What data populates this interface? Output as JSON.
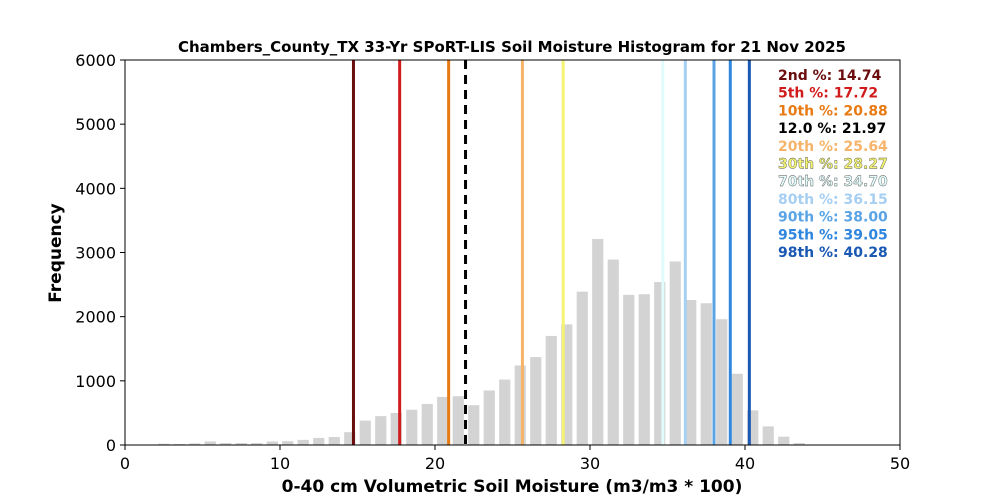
{
  "chart_data": {
    "type": "bar",
    "title": "Chambers_County_TX 33-Yr SPoRT-LIS Soil Moisture Histogram for 21 Nov 2025",
    "xlabel": "0-40 cm Volumetric Soil Moisture (m3/m3 * 100)",
    "ylabel": "Frequency",
    "xlim": [
      0,
      50
    ],
    "ylim": [
      0,
      6000
    ],
    "xticks": [
      0,
      10,
      20,
      30,
      40,
      50
    ],
    "yticks": [
      0,
      1000,
      2000,
      3000,
      4000,
      5000,
      6000
    ],
    "bin_width": 1,
    "bar_color": "#d3d3d3",
    "bins": [
      {
        "x": 2.5,
        "count": 20
      },
      {
        "x": 3.5,
        "count": 15
      },
      {
        "x": 4.5,
        "count": 25
      },
      {
        "x": 5.5,
        "count": 55
      },
      {
        "x": 6.5,
        "count": 30
      },
      {
        "x": 7.5,
        "count": 30
      },
      {
        "x": 8.5,
        "count": 30
      },
      {
        "x": 9.5,
        "count": 55
      },
      {
        "x": 10.5,
        "count": 60
      },
      {
        "x": 11.5,
        "count": 80
      },
      {
        "x": 12.5,
        "count": 110
      },
      {
        "x": 13.5,
        "count": 125
      },
      {
        "x": 14.5,
        "count": 200
      },
      {
        "x": 15.5,
        "count": 380
      },
      {
        "x": 16.5,
        "count": 450
      },
      {
        "x": 17.5,
        "count": 500
      },
      {
        "x": 18.5,
        "count": 550
      },
      {
        "x": 19.5,
        "count": 640
      },
      {
        "x": 20.5,
        "count": 750
      },
      {
        "x": 21.5,
        "count": 760
      },
      {
        "x": 22.5,
        "count": 620
      },
      {
        "x": 23.5,
        "count": 850
      },
      {
        "x": 24.5,
        "count": 1020
      },
      {
        "x": 25.5,
        "count": 1240
      },
      {
        "x": 26.5,
        "count": 1370
      },
      {
        "x": 27.5,
        "count": 1700
      },
      {
        "x": 28.5,
        "count": 1880
      },
      {
        "x": 29.5,
        "count": 2390
      },
      {
        "x": 30.5,
        "count": 3210
      },
      {
        "x": 31.5,
        "count": 2890
      },
      {
        "x": 32.5,
        "count": 2340
      },
      {
        "x": 33.5,
        "count": 2350
      },
      {
        "x": 34.5,
        "count": 2540
      },
      {
        "x": 35.5,
        "count": 2860
      },
      {
        "x": 36.5,
        "count": 2260
      },
      {
        "x": 37.5,
        "count": 2210
      },
      {
        "x": 38.5,
        "count": 1960
      },
      {
        "x": 39.5,
        "count": 1110
      },
      {
        "x": 40.5,
        "count": 540
      },
      {
        "x": 41.5,
        "count": 290
      },
      {
        "x": 42.5,
        "count": 130
      },
      {
        "x": 43.5,
        "count": 30
      }
    ],
    "percentiles": [
      {
        "label": "2nd %: 14.74",
        "value": 14.74,
        "color": "#6b0d0d",
        "dashed": false
      },
      {
        "label": "5th %: 17.72",
        "value": 17.72,
        "color": "#d01c1c",
        "dashed": false
      },
      {
        "label": "10th %: 20.88",
        "value": 20.88,
        "color": "#e87a13",
        "dashed": false
      },
      {
        "label": "12.0 %: 21.97",
        "value": 21.97,
        "color": "#000000",
        "dashed": true
      },
      {
        "label": "20th %: 25.64",
        "value": 25.64,
        "color": "#f6b46a",
        "dashed": false
      },
      {
        "label": "30th %: 28.27",
        "value": 28.27,
        "color": "#f4f470",
        "dashed": false
      },
      {
        "label": "70th %: 34.70",
        "value": 34.7,
        "color": "#e2fbfb",
        "dashed": false
      },
      {
        "label": "80th %: 36.15",
        "value": 36.15,
        "color": "#a6cff2",
        "dashed": false
      },
      {
        "label": "90th %: 38.00",
        "value": 38.0,
        "color": "#5aa4e6",
        "dashed": false
      },
      {
        "label": "95th %: 39.05",
        "value": 39.05,
        "color": "#2f86de",
        "dashed": false
      },
      {
        "label": "98th %: 40.28",
        "value": 40.28,
        "color": "#1958b3",
        "dashed": false
      }
    ],
    "legend_placement": "top-right",
    "grid": false
  }
}
